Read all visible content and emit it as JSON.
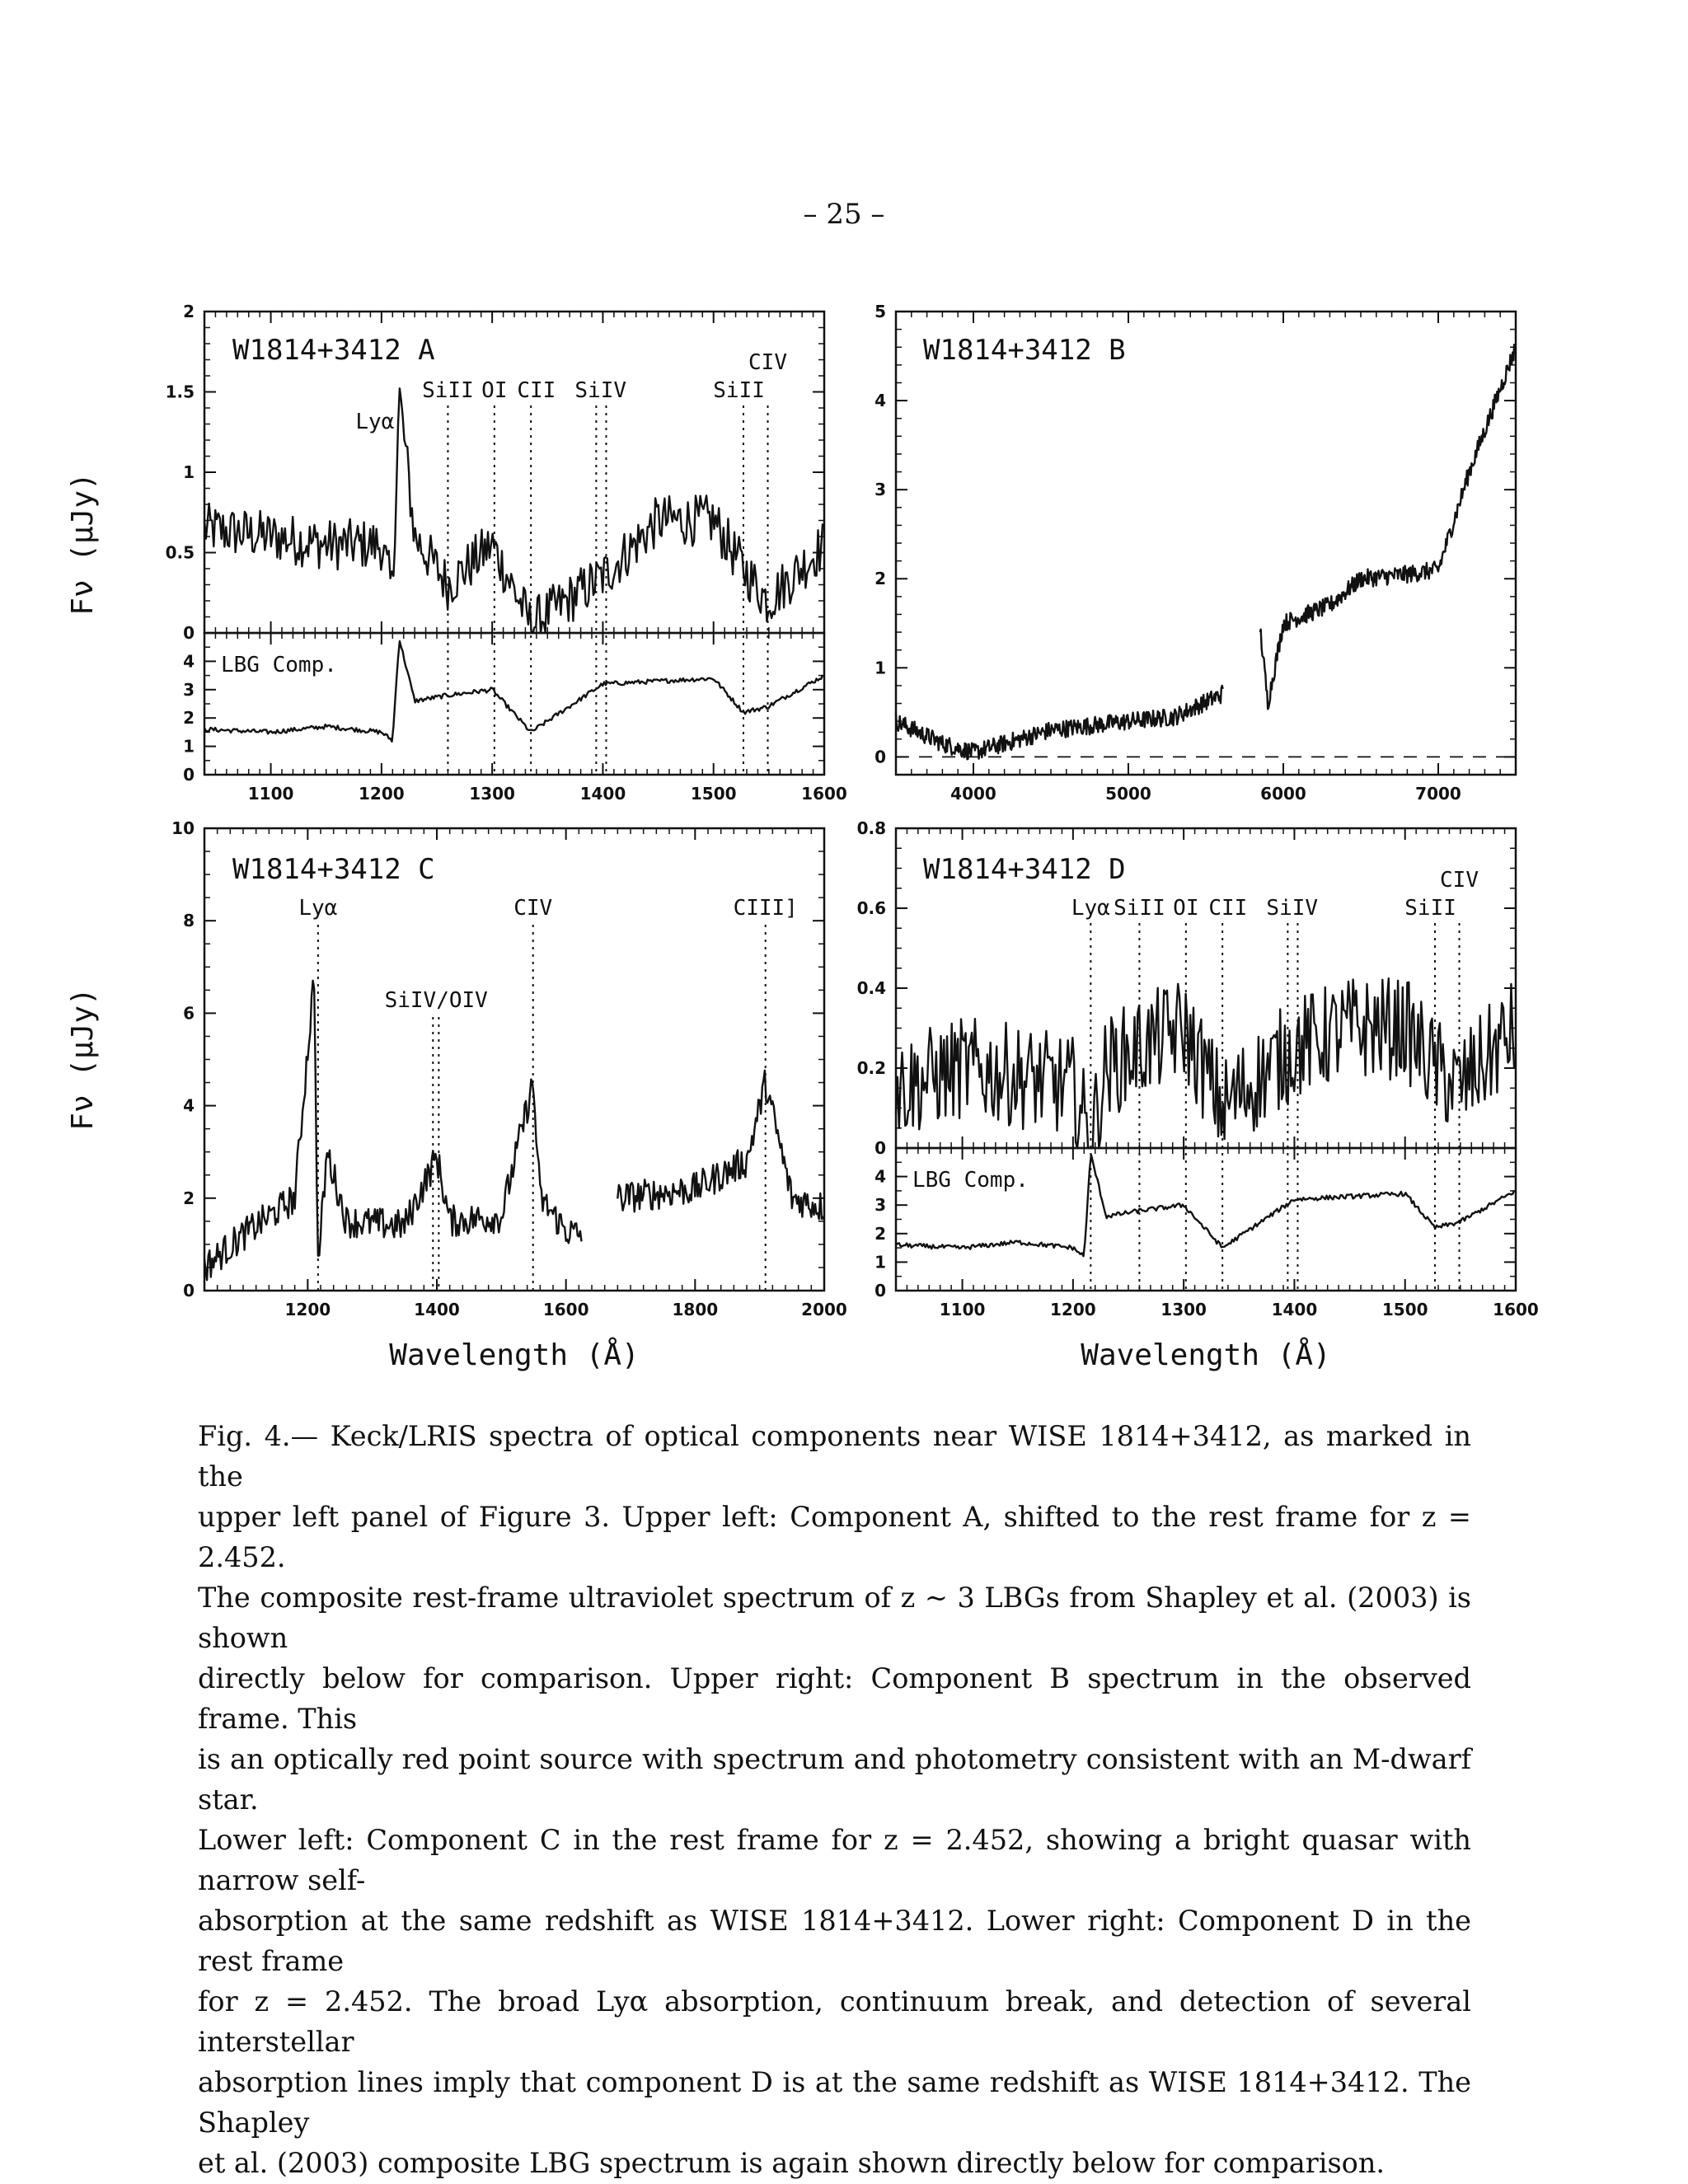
{
  "page_number": "– 25 –",
  "figure": {
    "ylabel": "Fν (μJy)",
    "xlabel": "Wavelength (Å)",
    "panels": {
      "A": {
        "title": "W1814+3412 A",
        "line_labels": [
          "Lyα",
          "SiII",
          "OI",
          "CII",
          "SiIV",
          "SiII",
          "CIV"
        ],
        "line_positions": [
          1216,
          1260,
          1302,
          1335,
          1394,
          1403,
          1527,
          1549
        ],
        "xlim": [
          1040,
          1600
        ],
        "ylim": [
          0,
          2
        ],
        "yticks": [
          "0",
          "0.5",
          "1",
          "1.5",
          "2"
        ],
        "sub_label": "LBG Comp.",
        "sub_ylim": [
          0,
          5
        ],
        "sub_yticks": [
          "0",
          "1",
          "2",
          "3",
          "4"
        ],
        "xticks": [
          "1100",
          "1200",
          "1300",
          "1400",
          "1500",
          "1600"
        ]
      },
      "B": {
        "title": "W1814+3412 B",
        "xlim": [
          3500,
          7500
        ],
        "ylim": [
          -0.2,
          5
        ],
        "yticks": [
          "0",
          "1",
          "2",
          "3",
          "4",
          "5"
        ],
        "xticks": [
          "4000",
          "5000",
          "6000",
          "7000"
        ]
      },
      "C": {
        "title": "W1814+3412 C",
        "line_labels": [
          "Lyα",
          "SiIV/OIV",
          "CIV",
          "CIII]"
        ],
        "line_positions": [
          1216,
          1394,
          1403,
          1549,
          1909
        ],
        "xlim": [
          1040,
          2000
        ],
        "ylim": [
          0,
          10
        ],
        "yticks": [
          "0",
          "2",
          "4",
          "6",
          "8",
          "10"
        ],
        "xticks": [
          "1200",
          "1400",
          "1600",
          "1800",
          "2000"
        ]
      },
      "D": {
        "title": "W1814+3412 D",
        "line_labels": [
          "Lyα",
          "SiII",
          "OI",
          "CII",
          "SiIV",
          "SiII",
          "CIV"
        ],
        "line_positions": [
          1216,
          1260,
          1302,
          1335,
          1394,
          1403,
          1527,
          1549
        ],
        "xlim": [
          1040,
          1600
        ],
        "ylim": [
          0,
          0.8
        ],
        "yticks": [
          "0",
          "0.2",
          "0.4",
          "0.6",
          "0.8"
        ],
        "sub_label": "LBG Comp.",
        "sub_ylim": [
          0,
          5
        ],
        "sub_yticks": [
          "0",
          "1",
          "2",
          "3",
          "4"
        ],
        "xticks": [
          "1100",
          "1200",
          "1300",
          "1400",
          "1500",
          "1600"
        ]
      }
    }
  },
  "chart_data": [
    {
      "type": "line",
      "title": "W1814+3412 A",
      "xlabel": "",
      "ylabel": "Fν (μJy)",
      "xlim": [
        1040,
        1600
      ],
      "ylim": [
        0,
        2
      ],
      "series": [
        {
          "x": [
            1040,
            1100,
            1150,
            1200,
            1210,
            1216,
            1230,
            1260,
            1300,
            1335,
            1400,
            1450,
            1500,
            1527,
            1549,
            1600
          ],
          "values": [
            0.65,
            0.6,
            0.55,
            0.55,
            0.25,
            1.5,
            0.6,
            0.3,
            0.55,
            0.05,
            0.35,
            0.7,
            0.7,
            0.4,
            0.2,
            0.55
          ]
        }
      ]
    },
    {
      "type": "line",
      "title": "",
      "xlabel": "",
      "ylabel": "",
      "xlim": [
        1040,
        1600
      ],
      "ylim": [
        0,
        5
      ],
      "series": [
        {
          "name": "LBG Comp.",
          "x": [
            1040,
            1100,
            1150,
            1200,
            1210,
            1216,
            1230,
            1260,
            1300,
            1335,
            1400,
            1450,
            1500,
            1527,
            1549,
            1600
          ],
          "values": [
            1.6,
            1.5,
            1.7,
            1.5,
            1.2,
            4.8,
            2.6,
            2.8,
            3.0,
            1.5,
            3.2,
            3.3,
            3.4,
            2.2,
            2.4,
            3.5
          ]
        }
      ]
    },
    {
      "type": "line",
      "title": "W1814+3412 B",
      "xlabel": "",
      "ylabel": "",
      "xlim": [
        3500,
        7500
      ],
      "ylim": [
        -0.2,
        5
      ],
      "series": [
        {
          "x": [
            3500,
            3800,
            4000,
            4200,
            4500,
            5000,
            5300,
            5600,
            5850,
            5900,
            6000,
            6300,
            6500,
            6800,
            7000,
            7200,
            7500
          ],
          "values": [
            0.4,
            0.15,
            0.05,
            0.15,
            0.3,
            0.4,
            0.45,
            0.7,
            1.45,
            0.6,
            1.5,
            1.7,
            2.0,
            2.05,
            2.1,
            3.2,
            4.6
          ]
        }
      ]
    },
    {
      "type": "line",
      "title": "W1814+3412 C",
      "xlabel": "Wavelength (Å)",
      "ylabel": "Fν (μJy)",
      "xlim": [
        1040,
        2000
      ],
      "ylim": [
        0,
        10
      ],
      "series": [
        {
          "x": [
            1040,
            1100,
            1180,
            1210,
            1216,
            1230,
            1260,
            1350,
            1400,
            1420,
            1500,
            1549,
            1560,
            1600,
            1620,
            1680,
            1800,
            1880,
            1909,
            1950,
            2000
          ],
          "values": [
            0.5,
            1.2,
            2.0,
            6.8,
            0.5,
            3.0,
            1.5,
            1.4,
            2.9,
            1.5,
            1.6,
            4.5,
            2.0,
            1.3,
            1.2,
            2.0,
            2.2,
            2.8,
            4.5,
            2.0,
            1.8
          ]
        }
      ]
    },
    {
      "type": "line",
      "title": "W1814+3412 D",
      "xlabel": "Wavelength (Å)",
      "ylabel": "",
      "xlim": [
        1040,
        1600
      ],
      "ylim": [
        0,
        0.8
      ],
      "series": [
        {
          "x": [
            1040,
            1100,
            1150,
            1200,
            1216,
            1230,
            1260,
            1300,
            1335,
            1400,
            1450,
            1500,
            1527,
            1549,
            1600
          ],
          "values": [
            0.15,
            0.2,
            0.18,
            0.15,
            0.02,
            0.2,
            0.25,
            0.3,
            0.1,
            0.25,
            0.3,
            0.3,
            0.2,
            0.15,
            0.3
          ]
        }
      ]
    },
    {
      "type": "line",
      "title": "",
      "xlabel": "",
      "ylabel": "",
      "xlim": [
        1040,
        1600
      ],
      "ylim": [
        0,
        5
      ],
      "series": [
        {
          "name": "LBG Comp.",
          "x": [
            1040,
            1100,
            1150,
            1200,
            1210,
            1216,
            1230,
            1260,
            1300,
            1335,
            1400,
            1450,
            1500,
            1527,
            1549,
            1600
          ],
          "values": [
            1.6,
            1.5,
            1.7,
            1.5,
            1.2,
            4.8,
            2.6,
            2.8,
            3.0,
            1.5,
            3.2,
            3.3,
            3.4,
            2.2,
            2.4,
            3.5
          ]
        }
      ]
    }
  ],
  "caption": {
    "lines": [
      "Fig.  4.— Keck/LRIS spectra of optical components near WISE 1814+3412, as marked in the",
      "upper left panel of Figure 3.  Upper left:  Component A, shifted to the rest frame for z = 2.452.",
      "The composite rest-frame ultraviolet spectrum of z ∼ 3 LBGs from Shapley et al. (2003) is shown",
      "directly below for comparison.  Upper right:  Component B spectrum in the observed frame.  This",
      "is an optically red point source with spectrum and photometry consistent with an M-dwarf star.",
      "Lower left:  Component C in the rest frame for z = 2.452, showing a bright quasar with narrow self-",
      "absorption at the same redshift as WISE 1814+3412.  Lower right:  Component D in the rest frame",
      "for z = 2.452.  The broad Lyα absorption, continuum break, and detection of several interstellar",
      "absorption lines imply that component D is at the same redshift as WISE 1814+3412.  The Shapley",
      "et al. (2003) composite LBG spectrum is again shown directly below for comparison."
    ]
  }
}
